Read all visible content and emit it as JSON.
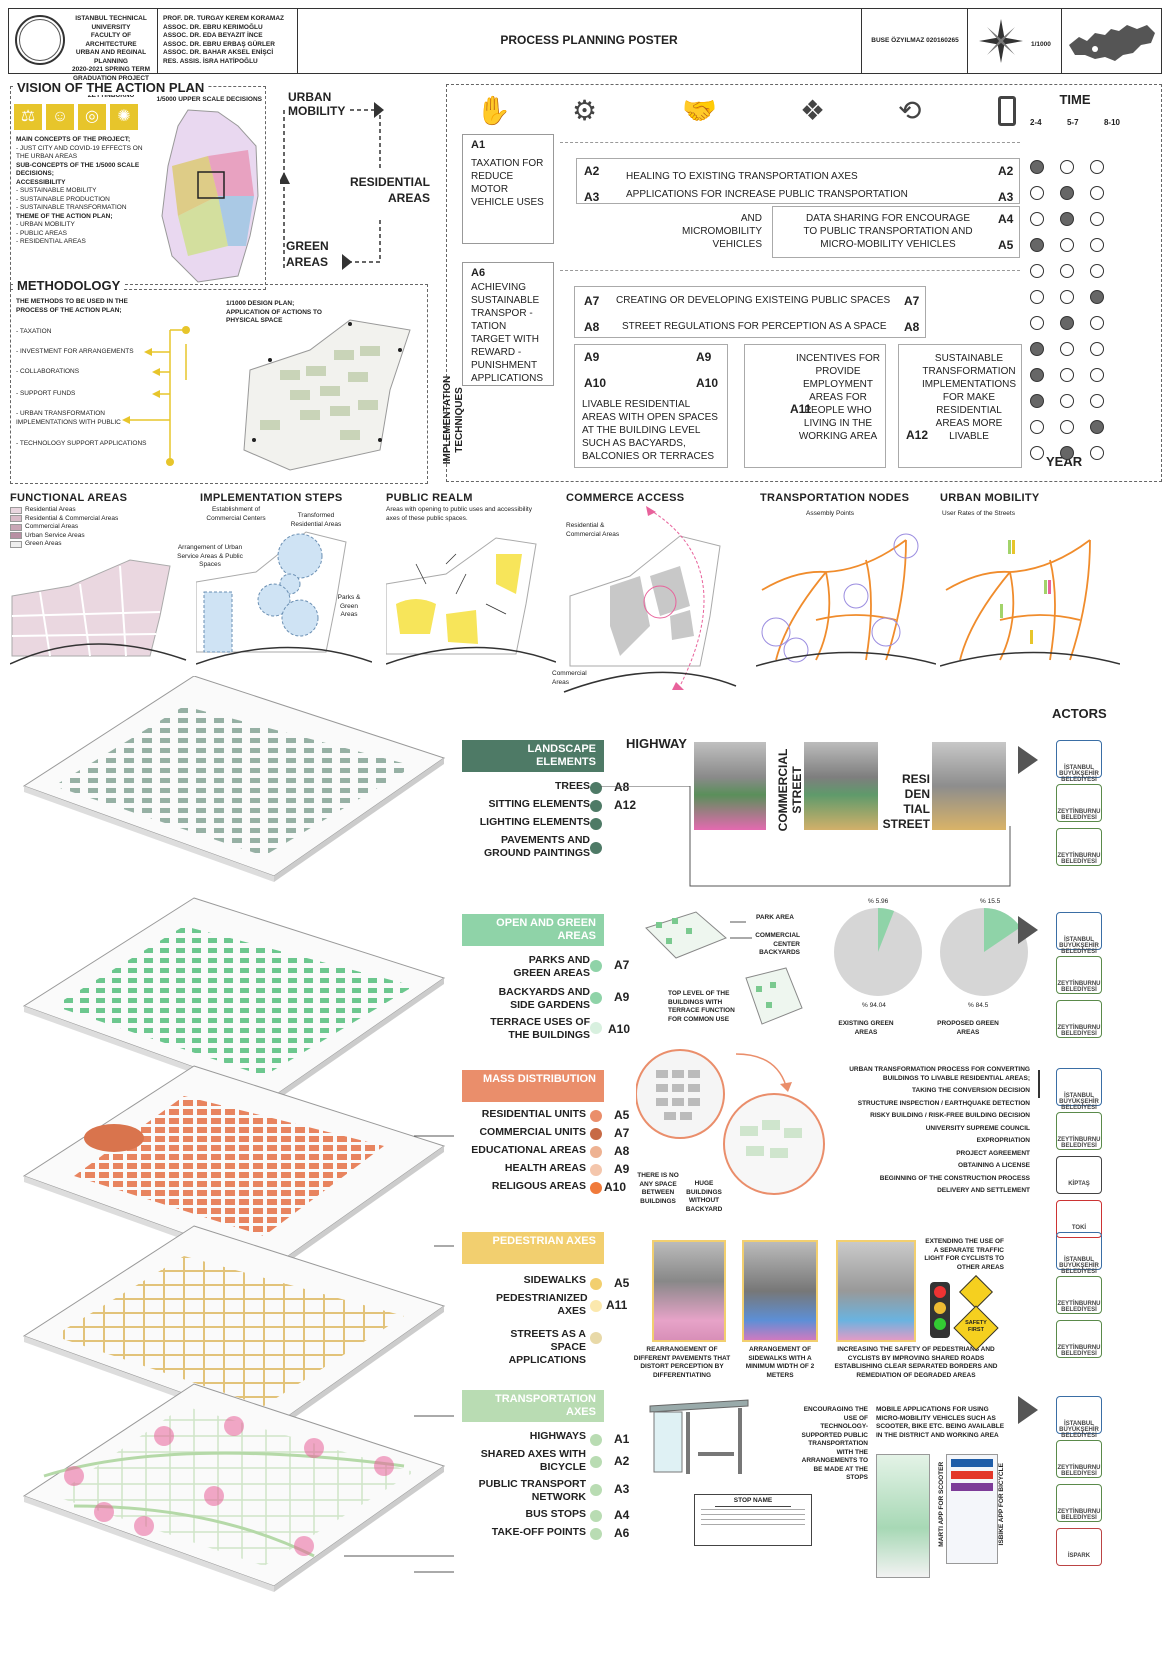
{
  "header": {
    "university": [
      "ISTANBUL TECHNICAL UNIVERSITY",
      "FACULTY OF ARCHITECTURE",
      "URBAN AND REGINAL PLANNING",
      "2020-2021 SPRING TERM",
      "GRADUATION PROJECT",
      "ISTANBUL / ZEYTINBURNU"
    ],
    "staff": [
      "PROF. DR. TURGAY KEREM KORAMAZ",
      "ASSOC. DR. EBRU KERIMOĞLU",
      "ASSOC. DR. EDA BEYAZIT İNCE",
      "ASSOC. DR. EBRU ERBAŞ GÜRLER",
      "ASSOC. DR. BAHAR AKSEL ENİŞCİ",
      "RES. ASSIS. İSRA HATİPOĞLU"
    ],
    "title": "PROCESS PLANNING POSTER",
    "author": "BUSE ÖZYILMAZ 020160265",
    "scale": "1/1000"
  },
  "vision": {
    "title": "VISION OF THE ACTION PLAN",
    "map_caption": "1/5000 UPPER SCALE DECISIONS",
    "main_concepts_title": "MAIN CONCEPTS OF THE PROJECT;",
    "main_concepts": "- JUST CITY AND COVID-19 EFFECTS ON THE URBAN AREAS",
    "sub_title": "SUB-CONCEPTS OF THE 1/5000 SCALE DECISIONS;",
    "accessibility": "ACCESSIBILITY",
    "sub_items": [
      "- SUSTAINABLE MOBILITY",
      "- SUSTAINABLE PRODUCTION",
      "- SUSTAINABLE TRANSFORMATION"
    ],
    "theme_title": "THEME OF THE ACTION PLAN;",
    "theme_items": [
      "- URBAN MOBILITY",
      "- PUBLIC AREAS",
      "- RESIDENTIAL AREAS"
    ]
  },
  "cycle": {
    "urban": "URBAN MOBILITY",
    "residential": "RESIDENTIAL AREAS",
    "green": "GREEN AREAS"
  },
  "methodology": {
    "title": "METHODOLOGY",
    "intro": "THE METHODS TO BE USED IN THE PROCESS OF THE ACTION PLAN;",
    "items": [
      "- TAXATION",
      "- INVESTMENT FOR ARRANGEMENTS",
      "- COLLABORATIONS",
      "- SUPPORT FUNDS",
      "- URBAN TRANSFORMATION IMPLEMENTATIONS WITH PUBLIC",
      "- TECHNOLOGY SUPPORT APPLICATIONS"
    ],
    "map_caption": "1/1000 DESIGN PLAN; APPLICATION OF ACTIONS TO PHYSICAL SPACE"
  },
  "implementation": {
    "side_label": "IMPLEMENTATION TECHNIQUES",
    "time_title": "TIME",
    "time_cols": [
      "2-4",
      "5-7",
      "8-10"
    ],
    "year": "YEAR",
    "a1": {
      "code": "A1",
      "text": "TAXATION FOR REDUCE MOTOR VEHICLE USES"
    },
    "a2": {
      "code": "A2",
      "text": "HEALING TO EXISTING  TRANSPORTATION AXES"
    },
    "a3": {
      "code": "A3",
      "text": "APPLICATIONS FOR INCREASE PUBLIC TRANSPORTATION"
    },
    "a4": {
      "code": "A4",
      "text": "DATA SHARING FOR  ENCOURAGE TO PUBLIC TRANSPORTATION AND MICRO-MOBILITY VEHICLES"
    },
    "a5": {
      "code": "A5",
      "text": "AND MICROMOBILITY VEHICLES"
    },
    "a6": {
      "code": "A6",
      "text": "ACHIEVING SUSTAINABLE TRANSPOR - TATION TARGET WITH REWARD - PUNISHMENT APPLICATIONS"
    },
    "a7": {
      "code": "A7",
      "text": "CREATING OR DEVELOPING EXISTEING PUBLIC SPACES"
    },
    "a8": {
      "code": "A8",
      "text": "STREET REGULATIONS FOR PERCEPTION AS A SPACE"
    },
    "a9": {
      "code": "A9"
    },
    "a10": {
      "code": "A10",
      "text": "LIVABLE RESIDENTIAL AREAS WITH OPEN SPACES AT THE BUILDING LEVEL SUCH AS BACYARDS, BALCONIES OR TERRACES"
    },
    "a11": {
      "code": "A11",
      "text": "INCENTIVES FOR PROVIDE EMPLOYMENT AREAS FOR PEOPLE WHO LIVING IN THE WORKING AREA"
    },
    "a12": {
      "code": "A12",
      "text": "SUSTAINABLE TRANSFORMATION IMPLEMENTATIONS FOR  MAKE RESIDENTIAL AREAS  MORE  LIVABLE"
    },
    "schedule": [
      [
        1,
        0,
        0
      ],
      [
        0,
        1,
        0
      ],
      [
        0,
        1,
        0
      ],
      [
        1,
        0,
        0
      ],
      [
        0,
        0,
        0
      ],
      [
        0,
        0,
        1
      ],
      [
        0,
        1,
        0
      ],
      [
        1,
        0,
        0
      ],
      [
        1,
        0,
        0
      ],
      [
        1,
        0,
        0
      ],
      [
        0,
        0,
        1
      ],
      [
        0,
        1,
        0
      ]
    ]
  },
  "diagrams": {
    "functional": {
      "title": "FUNCTIONAL AREAS",
      "legend": [
        "Residential Areas",
        "Residential & Commercial Areas",
        "Commercial Areas",
        "Urban Service Areas",
        "Green Areas"
      ]
    },
    "steps": {
      "title": "IMPLEMENTATION STEPS",
      "l1": "Establishment of Commercial Centers",
      "l2": "Transformed Residential Areas",
      "l3": "Arrangement of Urban Service Areas & Public Spaces",
      "l4": "Parks & Green Areas"
    },
    "realm": {
      "title": "PUBLIC REALM",
      "caption": "Areas with opening to public uses and accessibility axes of these public spaces."
    },
    "commerce": {
      "title": "COMMERCE ACCESS",
      "l1": "Residential & Commercial Areas",
      "l2": "Commercial Areas"
    },
    "nodes": {
      "title": "TRANSPORTATION NODES",
      "caption": "Assembly Points"
    },
    "mobility": {
      "title": "URBAN MOBILITY",
      "caption": "User Rates of the Streets"
    }
  },
  "actors_title": "ACTORS",
  "landscape": {
    "tag": "LANDSCAPE ELEMENTS",
    "items": [
      {
        "label": "TREES",
        "code": "A8"
      },
      {
        "label": "SITTING ELEMENTS",
        "code": "A12"
      },
      {
        "label": "LIGHTING ELEMENTS",
        "code": ""
      },
      {
        "label": "PAVEMENTS AND GROUND PAINTINGS",
        "code": ""
      }
    ],
    "highway": "HIGHWAY",
    "commercial": "COMMERCIAL STREET",
    "residential": "RESI DEN TIAL STREET"
  },
  "green": {
    "tag": "OPEN AND GREEN AREAS",
    "items": [
      {
        "label": "PARKS AND GREEN AREAS",
        "code": "A7"
      },
      {
        "label": "BACKYARDS AND SIDE GARDENS",
        "code": "A9"
      },
      {
        "label": "TERRACE USES OF THE BUILDINGS",
        "code": "A10"
      }
    ],
    "park": "PARK AREA",
    "center": "COMMERCIAL CENTER BACKYARDS",
    "terrace": "TOP LEVEL OF THE BUILDINGS WITH TERRACE FUNCTION FOR COMMON USE",
    "exist_small": "% 5.96",
    "exist_large": "% 94.04",
    "exist_label": "EXISTING GREEN AREAS",
    "prop_small": "% 15.5",
    "prop_large": "% 84.5",
    "prop_label": "PROPOSED GREEN AREAS"
  },
  "pie_values": {
    "existing": 5.96,
    "proposed": 15.5
  },
  "mass": {
    "tag": "MASS DISTRIBUTION",
    "items": [
      {
        "label": "RESIDENTIAL UNITS",
        "code": "A5"
      },
      {
        "label": "COMMERCIAL UNITS",
        "code": "A7"
      },
      {
        "label": "EDUCATIONAL AREAS",
        "code": "A8"
      },
      {
        "label": "HEALTH AREAS",
        "code": "A9"
      },
      {
        "label": "RELIGOUS AREAS",
        "code": "A10"
      }
    ],
    "no_space": "THERE IS NO ANY SPACE BETWEEN BUILDINGS",
    "huge": "HUGE BUILDINGS WITHOUT BACKYARD",
    "process": [
      "URBAN TRANSFORMATION  PROCESS FOR CONVERTING BUILDINGS TO LIVABLE RESIDENTIAL AREAS;",
      "TAKING THE CONVERSION DECISION",
      "STRUCTURE INSPECTION / EARTHQUAKE DETECTION",
      "RISKY BUILDING / RISK-FREE BUILDING DECISION",
      "UNIVERSITY SUPREME COUNCIL",
      "EXPROPRIATION",
      "PROJECT AGREEMENT",
      "OBTAINING A LICENSE",
      "BEGINNING OF THE CONSTRUCTION PROCESS",
      "DELIVERY AND SETTLEMENT"
    ]
  },
  "pedestrian": {
    "tag": "PEDESTRIAN AXES",
    "items": [
      {
        "label": "SIDEWALKS",
        "code": "A5"
      },
      {
        "label": "PEDESTRIANIZED AXES",
        "code": "A11"
      },
      {
        "label": "STREETS AS A SPACE APPLICATIONS",
        "code": ""
      }
    ],
    "p1": "REARRANGEMENT OF DIFFERENT PAVEMENTS THAT DISTORT PERCEPTION BY DIFFERENTIATING",
    "p2": "ARRANGEMENT OF SIDEWALKS WITH A MINIMUM WIDTH OF 2 METERS",
    "p3": "INCREASING THE SAFETY OF PEDESTRIANS AND CYCLISTS BY IMPROVING SHARED ROADS ESTABLISHING CLEAR SEPARATED BORDERS AND REMEDIATION OF DEGRADED AREAS",
    "p4": "EXTENDING THE USE OF A SEPARATE TRAFFIC LIGHT FOR CYCLISTS TO OTHER AREAS",
    "sign": "SAFETY FIRST"
  },
  "transport": {
    "tag": "TRANSPORTATION AXES",
    "items": [
      {
        "label": "HIGHWAYS",
        "code": "A1"
      },
      {
        "label": "SHARED AXES WITH BICYCLE",
        "code": "A2"
      },
      {
        "label": "PUBLIC TRANSPORT NETWORK",
        "code": "A3"
      },
      {
        "label": "BUS STOPS",
        "code": "A4"
      },
      {
        "label": "TAKE-OFF POINTS",
        "code": "A6"
      }
    ],
    "stop_name": "STOP NAME",
    "encourage": "ENCOURAGING THE USE OF TECHNOLOGY-SUPPORTED PUBLIC TRANSPORTATION WITH THE ARRANGEMENTS TO BE MADE AT THE STOPS",
    "mobile": "MOBILE APPLICATIONS FOR USING MICRO-MOBILITY VEHICLES SUCH AS SCOOTER, BIKE ETC. BEING AVAILABLE IN THE DISTRICT AND WORKING AREA",
    "app1": "MARTI APP FOR SCOOTER",
    "app2": "ISBIKE APP FOR BICYCLE"
  },
  "actors": [
    "İSTANBUL BÜYÜKŞEHİR BELEDİYESİ",
    "ZEYTİNBURNU BELEDİYESİ",
    "KİPTAŞ",
    "TOKİ",
    "İSPARK"
  ],
  "colors": {
    "landscape": "#4e7a66",
    "green": "#8fd3a8",
    "mass": "#ea8e6b",
    "pedestrian": "#f2cf6f",
    "transport": "#b9dcb3",
    "yellow": "#e7c52b",
    "orange": "#f08c2c",
    "pink": "#e8629b"
  }
}
